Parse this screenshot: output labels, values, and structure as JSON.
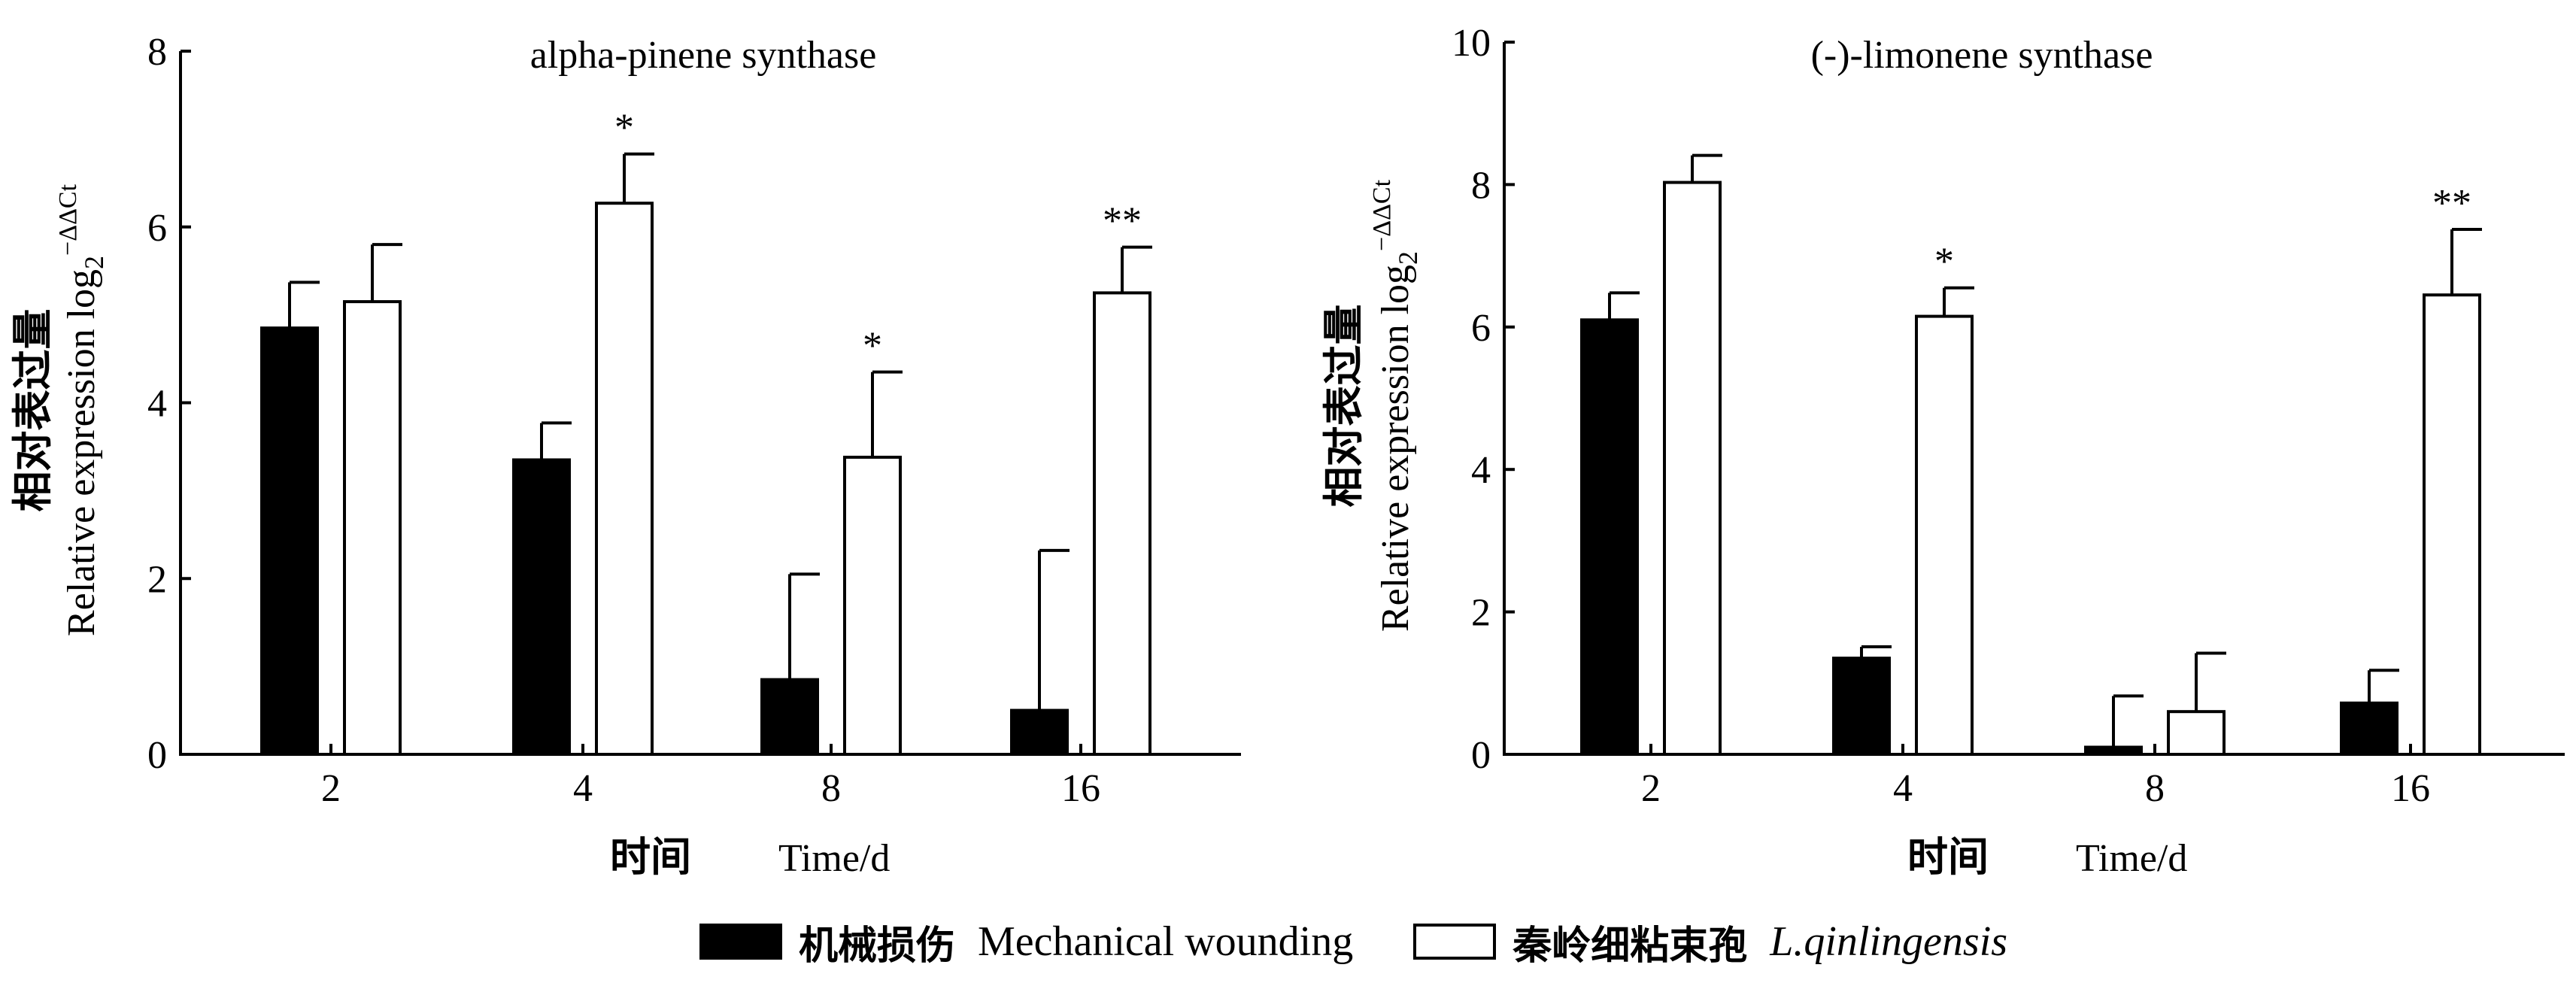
{
  "chart_data": [
    {
      "type": "bar",
      "title": "alpha-pinene synthase",
      "categories": [
        "2",
        "4",
        "8",
        "16"
      ],
      "ylim": [
        0,
        8
      ],
      "yticks": [
        0,
        2,
        4,
        6,
        8
      ],
      "ylabel_cn": "相对表过量",
      "ylabel_en": "Relative expression log",
      "ylabel_sub": "2",
      "ylabel_sup": "−ΔΔCt",
      "xlabel_cn": "时间",
      "xlabel_en": "Time/d",
      "series": [
        {
          "name": "Mechanical wounding",
          "values": [
            4.85,
            3.35,
            0.85,
            0.5
          ],
          "errors": [
            0.52,
            0.42,
            1.2,
            1.82
          ],
          "sig": [
            "",
            "",
            "",
            ""
          ]
        },
        {
          "name": "L.qinlingensis",
          "values": [
            5.15,
            6.27,
            3.38,
            5.25
          ],
          "errors": [
            0.65,
            0.56,
            0.97,
            0.52
          ],
          "sig": [
            "",
            "*",
            "*",
            "**"
          ]
        }
      ]
    },
    {
      "type": "bar",
      "title": "(-)-limonene synthase",
      "categories": [
        "2",
        "4",
        "8",
        "16"
      ],
      "ylim": [
        0,
        10
      ],
      "yticks": [
        0,
        2,
        4,
        6,
        8,
        10
      ],
      "ylabel_cn": "相对表过量",
      "ylabel_en": "Relative expression log",
      "ylabel_sub": "2",
      "ylabel_sup": "−ΔΔCt",
      "xlabel_cn": "时间",
      "xlabel_en": "Time/d",
      "series": [
        {
          "name": "Mechanical wounding",
          "values": [
            6.1,
            1.35,
            0.1,
            0.72
          ],
          "errors": [
            0.38,
            0.16,
            0.72,
            0.46
          ],
          "sig": [
            "",
            "",
            "",
            ""
          ]
        },
        {
          "name": "L.qinlingensis",
          "values": [
            8.03,
            6.15,
            0.6,
            6.45
          ],
          "errors": [
            0.38,
            0.4,
            0.82,
            0.92
          ],
          "sig": [
            "",
            "*",
            "",
            "**"
          ]
        }
      ]
    }
  ],
  "legend": {
    "items": [
      {
        "cn": "机械损伤",
        "en": "Mechanical wounding",
        "fill": "#000000",
        "italic": false
      },
      {
        "cn": "秦岭细粘束孢",
        "en": "L.qinlingensis",
        "fill": "#ffffff",
        "italic": true
      }
    ]
  },
  "colors": {
    "series_fill": [
      "#000000",
      "#ffffff"
    ],
    "stroke": "#000000"
  }
}
